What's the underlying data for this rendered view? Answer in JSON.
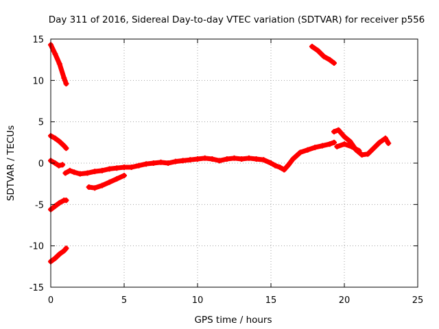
{
  "chart_data": {
    "type": "scatter",
    "title": "Day 311 of 2016, Sidereal Day-to-day VTEC variation (SDTVAR) for receiver p556",
    "xlabel": "GPS time / hours",
    "ylabel": "SDTVAR / TECUs",
    "xlim": [
      0,
      25
    ],
    "ylim": [
      -15,
      15
    ],
    "xticks": [
      0,
      5,
      10,
      15,
      20,
      25
    ],
    "yticks": [
      -15,
      -10,
      -5,
      0,
      5,
      10,
      15
    ],
    "grid": true,
    "series_color": "#ff0000",
    "series": [
      {
        "name": "arc-top-left",
        "x": [
          0.0,
          0.3,
          0.6,
          0.9,
          1.05
        ],
        "y": [
          14.3,
          13.2,
          12.0,
          10.3,
          9.6
        ]
      },
      {
        "name": "arc-upper-left",
        "x": [
          0.0,
          0.3,
          0.6,
          0.9,
          1.05
        ],
        "y": [
          3.3,
          3.0,
          2.6,
          2.1,
          1.8
        ]
      },
      {
        "name": "arc-zero-left",
        "x": [
          0.0,
          0.3,
          0.55,
          0.8
        ],
        "y": [
          0.3,
          0.0,
          -0.3,
          -0.2
        ]
      },
      {
        "name": "arc-mid-low-left",
        "x": [
          0.0,
          0.3,
          0.6,
          0.9,
          1.05
        ],
        "y": [
          -5.6,
          -5.2,
          -4.8,
          -4.5,
          -4.5
        ]
      },
      {
        "name": "arc-low-left",
        "x": [
          0.0,
          0.3,
          0.6,
          0.9,
          1.05
        ],
        "y": [
          -11.9,
          -11.5,
          -11.0,
          -10.6,
          -10.3
        ]
      },
      {
        "name": "arc-main",
        "x": [
          1.0,
          1.3,
          1.6,
          2.0,
          2.5,
          3.0,
          3.5,
          4.0,
          4.5,
          5.0,
          5.5,
          6.0,
          6.5,
          7.0,
          7.5,
          8.0,
          8.5,
          9.0,
          9.5,
          10.0,
          10.5,
          11.0,
          11.5,
          12.0,
          12.5,
          13.0,
          13.5,
          14.0,
          14.5,
          15.0,
          15.3,
          15.6,
          15.9,
          16.2,
          16.5,
          17.0,
          17.5,
          18.0,
          18.5,
          19.0,
          19.3
        ],
        "y": [
          -1.2,
          -0.9,
          -1.1,
          -1.3,
          -1.2,
          -1.0,
          -0.9,
          -0.7,
          -0.6,
          -0.5,
          -0.5,
          -0.3,
          -0.1,
          0.0,
          0.1,
          0.0,
          0.2,
          0.3,
          0.4,
          0.5,
          0.6,
          0.5,
          0.3,
          0.5,
          0.6,
          0.5,
          0.6,
          0.5,
          0.4,
          0.0,
          -0.3,
          -0.5,
          -0.8,
          -0.2,
          0.5,
          1.3,
          1.6,
          1.9,
          2.1,
          2.3,
          2.5
        ]
      },
      {
        "name": "arc-lower-branch",
        "x": [
          2.6,
          3.0,
          3.5,
          4.0,
          4.5,
          5.0
        ],
        "y": [
          -2.9,
          -3.0,
          -2.7,
          -2.3,
          -1.9,
          -1.5
        ]
      },
      {
        "name": "arc-top-right",
        "x": [
          17.8,
          18.2,
          18.6,
          19.0,
          19.3
        ],
        "y": [
          14.1,
          13.6,
          12.9,
          12.5,
          12.1
        ]
      },
      {
        "name": "arc-right",
        "x": [
          19.3,
          19.6,
          20.0,
          20.4,
          20.8,
          21.2,
          21.6,
          22.0,
          22.4,
          22.8,
          23.0
        ],
        "y": [
          3.8,
          4.0,
          3.2,
          2.6,
          1.6,
          1.0,
          1.1,
          1.8,
          2.5,
          3.0,
          2.4
        ]
      },
      {
        "name": "arc-right-lower",
        "x": [
          19.5,
          20.0,
          20.5,
          21.0
        ],
        "y": [
          2.0,
          2.3,
          2.0,
          1.5
        ]
      }
    ]
  }
}
